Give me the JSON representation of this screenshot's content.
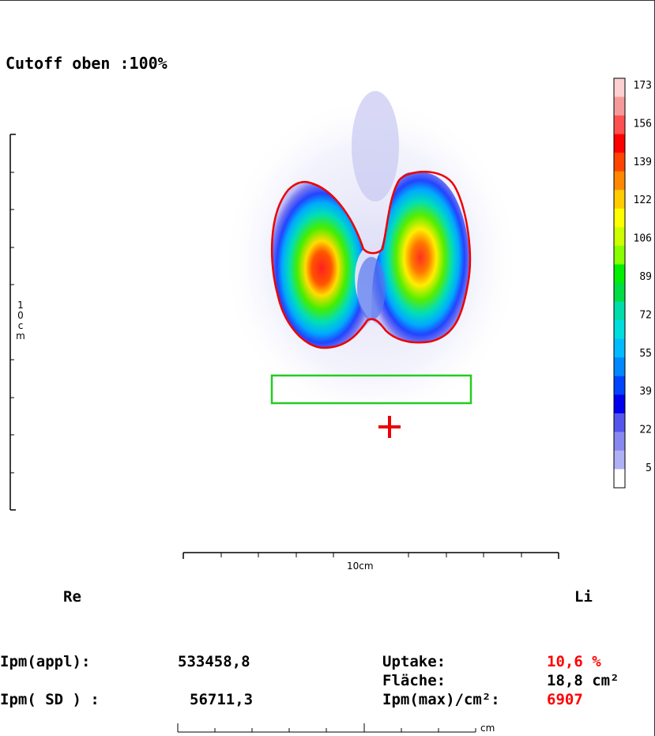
{
  "header": {
    "cutoff_label": "Cutoff oben :100%"
  },
  "orientation": {
    "right_label": "Re",
    "left_label": "Li"
  },
  "vertical_scale": {
    "label": "10cm"
  },
  "horizontal_scale": {
    "label": "10cm"
  },
  "bottom_scale": {
    "unit": "cm"
  },
  "color_scale": {
    "ticks": [
      "173",
      "156",
      "139",
      "122",
      "106",
      "89",
      "72",
      "55",
      "39",
      "22",
      "5"
    ],
    "colors": [
      "#fcd0d0",
      "#f59a9a",
      "#ff5050",
      "#ff0000",
      "#ff4400",
      "#ff8800",
      "#ffcc00",
      "#ffff00",
      "#ccff00",
      "#88ff00",
      "#00ee00",
      "#00dd44",
      "#00ddaa",
      "#00dddd",
      "#00bbff",
      "#0088ff",
      "#0044ff",
      "#0000ee",
      "#5555ee",
      "#8888f0",
      "#b0b0f6",
      "#ffffff"
    ]
  },
  "stats": {
    "ipm_appl_label": "Ipm(appl):",
    "ipm_appl_value": "533458,8",
    "ipm_sd_label": "Ipm( SD ) :",
    "ipm_sd_value": "56711,3",
    "uptake_label": "Uptake:",
    "uptake_value": "10,6 %",
    "flaeche_label": "Fläche:",
    "flaeche_value": "18,8 cm²",
    "ipm_max_label": "Ipm(max)/cm²:",
    "ipm_max_value": "6907"
  },
  "colors": {
    "roi_outline": "#ee0000",
    "background_roi": "#22cc22",
    "marker": "#ee0000",
    "value_highlight": "#ff0000"
  }
}
